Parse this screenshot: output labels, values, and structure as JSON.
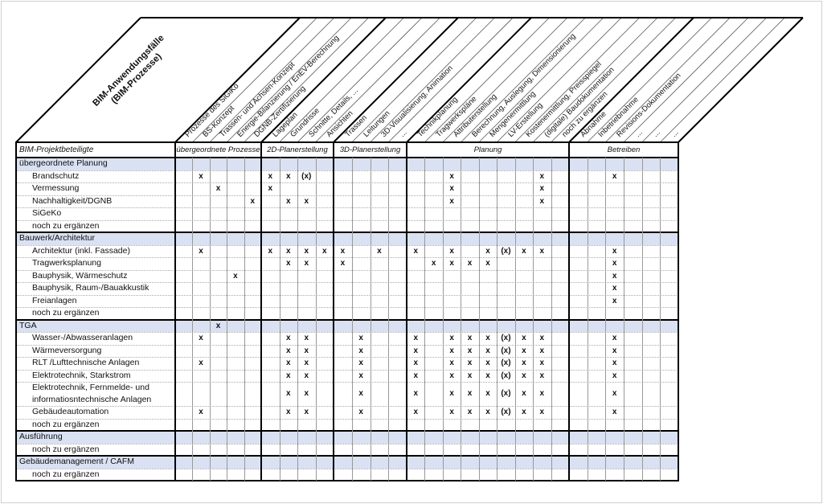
{
  "corner": {
    "line1": "BIM-Anwendungsfälle",
    "line2": "(BIM-Prozesse)"
  },
  "row_header": "BIM-Projektbeteiligte",
  "colors": {
    "section_bg": "#D9E1F2",
    "thick_line": "#000000",
    "thin_line": "#999999",
    "dotted_line": "#aaaaaa",
    "stripe_line": "#555555"
  },
  "groups": [
    {
      "label": "übergeordnete Prozesse",
      "columns": [
        "Prozesse des SiGiKo",
        "BS-Konzept",
        "Trassen- und Achsen-Konzept",
        "Energie-Bilanzierung / EnEV-Berechnung",
        "DGNB-Zertifizierung"
      ]
    },
    {
      "label": "2D-Planerstellung",
      "columns": [
        "Lageplan",
        "Grundrisse",
        "Schnitte, Details, ...",
        "Ansichten"
      ]
    },
    {
      "label": "3D-Planerstellung",
      "columns": [
        "Trassen",
        "Leitungen",
        "3D-Visualisierung, Animation",
        "..."
      ]
    },
    {
      "label": "Planung",
      "columns": [
        "Technikplanung",
        "Tragwerkspläne",
        "Attributerstellung",
        "Berechnung, Auslegung, Dimensionierung",
        "Mengenermittlung",
        "LV-Erstellung",
        "Kostenermittlung, Preisspiegel",
        "(digitale) Baudokumentation",
        "noch zu ergänzen"
      ]
    },
    {
      "label": "Betreiben",
      "columns": [
        "Abnahme",
        "Inbetriebnahme",
        "Revisions-Dokumentation",
        "...",
        "...",
        "..."
      ]
    }
  ],
  "rows": [
    {
      "type": "section",
      "label": "übergeordnete Planung",
      "marks": {}
    },
    {
      "type": "item",
      "label": "Brandschutz",
      "marks": {
        "2": "x",
        "6": "x",
        "7": "x",
        "8": "(x)",
        "16": "x",
        "21": "x",
        "25": "x"
      }
    },
    {
      "type": "item",
      "label": "Vermessung",
      "marks": {
        "3": "x",
        "6": "x",
        "16": "x",
        "21": "x"
      }
    },
    {
      "type": "item",
      "label": "Nachhaltigkeit/DGNB",
      "marks": {
        "5": "x",
        "7": "x",
        "8": "x",
        "16": "x",
        "21": "x"
      }
    },
    {
      "type": "item",
      "label": "SiGeKo",
      "marks": {}
    },
    {
      "type": "item",
      "label": "noch zu ergänzen",
      "marks": {}
    },
    {
      "type": "section",
      "label": "Bauwerk/Architektur",
      "marks": {}
    },
    {
      "type": "item",
      "label": "Architektur (inkl. Fassade)",
      "marks": {
        "2": "x",
        "6": "x",
        "7": "x",
        "8": "x",
        "9": "x",
        "10": "x",
        "12": "x",
        "14": "x",
        "16": "x",
        "18": "x",
        "19": "(x)",
        "20": "x",
        "21": "x",
        "25": "x"
      }
    },
    {
      "type": "item",
      "label": "Tragwerksplanung",
      "marks": {
        "7": "x",
        "8": "x",
        "10": "x",
        "15": "x",
        "16": "x",
        "17": "x",
        "18": "x",
        "25": "x"
      }
    },
    {
      "type": "item",
      "label": "Bauphysik, Wärmeschutz",
      "marks": {
        "4": "x",
        "25": "x"
      }
    },
    {
      "type": "item",
      "label": "Bauphysik, Raum-/Bauakkustik",
      "marks": {
        "25": "x"
      }
    },
    {
      "type": "item",
      "label": "Freianlagen",
      "marks": {
        "25": "x"
      }
    },
    {
      "type": "item",
      "label": "noch zu ergänzen",
      "marks": {}
    },
    {
      "type": "section",
      "label": "TGA",
      "marks": {
        "3": "x"
      }
    },
    {
      "type": "item",
      "label": "Wasser-/Abwasseranlagen",
      "marks": {
        "2": "x",
        "7": "x",
        "8": "x",
        "11": "x",
        "14": "x",
        "16": "x",
        "17": "x",
        "18": "x",
        "19": "(x)",
        "20": "x",
        "21": "x",
        "25": "x"
      }
    },
    {
      "type": "item",
      "label": "Wärmeversorgung",
      "marks": {
        "7": "x",
        "8": "x",
        "11": "x",
        "14": "x",
        "16": "x",
        "17": "x",
        "18": "x",
        "19": "(x)",
        "20": "x",
        "21": "x",
        "25": "x"
      }
    },
    {
      "type": "item",
      "label": "RLT /Lufttechnische Anlagen",
      "marks": {
        "2": "x",
        "7": "x",
        "8": "x",
        "11": "x",
        "14": "x",
        "16": "x",
        "17": "x",
        "18": "x",
        "19": "(x)",
        "20": "x",
        "21": "x",
        "25": "x"
      }
    },
    {
      "type": "item",
      "label": "Elektrotechnik, Starkstrom",
      "marks": {
        "7": "x",
        "8": "x",
        "11": "x",
        "14": "x",
        "16": "x",
        "17": "x",
        "18": "x",
        "19": "(x)",
        "20": "x",
        "21": "x",
        "25": "x"
      }
    },
    {
      "type": "item",
      "label": "Elektrotechnik, Fernmelde- und",
      "label2": "informatiosntechnische Anlagen",
      "marks": {
        "7": "x",
        "8": "x",
        "11": "x",
        "14": "x",
        "16": "x",
        "17": "x",
        "18": "x",
        "19": "(x)",
        "20": "x",
        "21": "x",
        "25": "x"
      }
    },
    {
      "type": "item",
      "label": "Gebäudeautomation",
      "marks": {
        "2": "x",
        "7": "x",
        "8": "x",
        "11": "x",
        "14": "x",
        "16": "x",
        "17": "x",
        "18": "x",
        "19": "(x)",
        "20": "x",
        "21": "x",
        "25": "x"
      }
    },
    {
      "type": "item",
      "label": "noch zu ergänzen",
      "marks": {}
    },
    {
      "type": "section",
      "label": "Ausführung",
      "marks": {}
    },
    {
      "type": "item",
      "label": "noch zu ergänzen",
      "marks": {}
    },
    {
      "type": "section",
      "label": "Gebäudemanagement / CAFM",
      "marks": {}
    },
    {
      "type": "item",
      "label": "noch zu ergänzen",
      "marks": {}
    }
  ]
}
